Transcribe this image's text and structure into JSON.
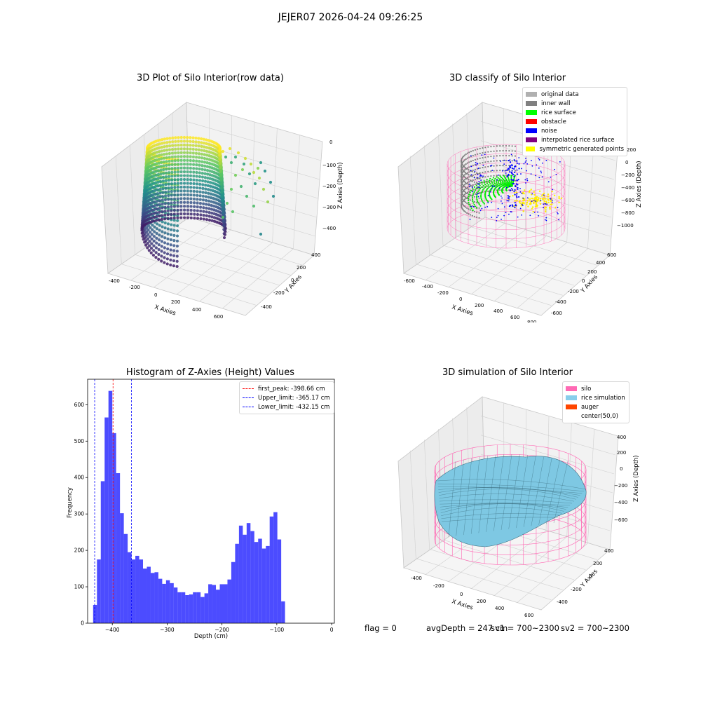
{
  "suptitle": "JEJER07 2026-04-24 09:26:25",
  "plot1": {
    "title": "3D Plot of Silo Interior(row data)",
    "xlabel": "X Axies",
    "ylabel": "Y Axies",
    "zlabel": "Z Axies (Depth)",
    "xticks": [
      "-400",
      "-200",
      "0",
      "200",
      "400",
      "600"
    ],
    "yticks": [
      "-400",
      "-200",
      "0",
      "200",
      "400"
    ],
    "zticks": [
      "0",
      "−100",
      "−200",
      "−300",
      "−400"
    ]
  },
  "plot2": {
    "title": "3D classify of Silo Interior",
    "xlabel": "X Axies",
    "ylabel": "Y Axies",
    "zlabel": "Z Axies (Depth)",
    "xticks": [
      "-600",
      "-400",
      "-200",
      "0",
      "200",
      "400",
      "600",
      "800"
    ],
    "yticks": [
      "-600",
      "-400",
      "-200",
      "0",
      "200",
      "400",
      "600"
    ],
    "zticks": [
      "200",
      "0",
      "−200",
      "−400",
      "−600",
      "−800",
      "−1000"
    ],
    "legend": [
      {
        "label": "original data",
        "color": "#b0b0b0"
      },
      {
        "label": "inner wall",
        "color": "#808080"
      },
      {
        "label": "rice surface",
        "color": "#00ff00"
      },
      {
        "label": "obstacle",
        "color": "#ff0000"
      },
      {
        "label": "noise",
        "color": "#0000ff"
      },
      {
        "label": "interpolated rice surface",
        "color": "#800080"
      },
      {
        "label": "symmetric generated points",
        "color": "#ffff00"
      }
    ]
  },
  "plot4": {
    "title": "3D simulation of Silo Interior",
    "xlabel": "X Axies",
    "ylabel": "Y Axies",
    "zlabel": "Z Axies (Depth)",
    "xticks": [
      "-400",
      "-200",
      "0",
      "200",
      "400",
      "600"
    ],
    "yticks": [
      "-400",
      "-200",
      "0",
      "200",
      "400"
    ],
    "zticks": [
      "400",
      "200",
      "0",
      "−200",
      "−400",
      "−600"
    ],
    "legend": [
      {
        "label": "silo",
        "color": "#ff69b4"
      },
      {
        "label": "rice simulation",
        "color": "#87ceeb"
      },
      {
        "label": "auger",
        "color": "#ff4500"
      },
      {
        "label": "center(50,0)",
        "color": "#ffffff"
      }
    ]
  },
  "footer": {
    "flag": "flag = 0",
    "avg": "avgDepth = 247 cm",
    "sv1": "sv1 = 700~2300",
    "sv2": "sv2 = 700~2300"
  },
  "chart_data": {
    "type": "bar",
    "title": "Histogram of Z-Axies (Height) Values",
    "xlabel": "Depth (cm)",
    "ylabel": "Frequency",
    "xlim": [
      -445,
      5
    ],
    "ylim": [
      0,
      670
    ],
    "xticks": [
      -400,
      -300,
      -200,
      -100,
      0
    ],
    "yticks": [
      0,
      100,
      200,
      300,
      400,
      500,
      600
    ],
    "bin_start": -435,
    "bin_width": 7,
    "values": [
      50,
      175,
      390,
      565,
      638,
      522,
      412,
      302,
      245,
      195,
      175,
      185,
      175,
      150,
      155,
      138,
      140,
      122,
      108,
      118,
      110,
      98,
      85,
      85,
      77,
      79,
      85,
      85,
      72,
      82,
      107,
      105,
      92,
      107,
      107,
      120,
      168,
      218,
      268,
      243,
      275,
      253,
      223,
      232,
      205,
      212,
      293,
      305,
      230,
      60
    ],
    "bar_color": "#0000ff",
    "vlines": [
      {
        "label": "first_peak: -398.66 cm",
        "x": -398.66,
        "color": "#ff0000"
      },
      {
        "label": "Upper_limit: -365.17 cm",
        "x": -365.17,
        "color": "#0000ff"
      },
      {
        "label": "Lower_limit: -432.15 cm",
        "x": -432.15,
        "color": "#0000ff"
      }
    ],
    "legend_position": "top-right"
  }
}
